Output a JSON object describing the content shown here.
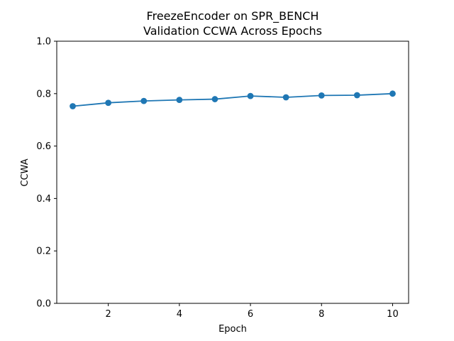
{
  "chart_data": {
    "type": "line",
    "title": "FreezeEncoder on SPR_BENCH",
    "subtitle": "Validation CCWA Across Epochs",
    "xlabel": "Epoch",
    "ylabel": "CCWA",
    "xlim": [
      0.55,
      10.45
    ],
    "ylim": [
      0,
      1.0
    ],
    "xticks": [
      2,
      4,
      6,
      8,
      10
    ],
    "yticks": [
      0.0,
      0.2,
      0.4,
      0.6,
      0.8,
      1.0
    ],
    "ytick_labels": [
      "0.0",
      "0.2",
      "0.4",
      "0.6",
      "0.8",
      "1.0"
    ],
    "grid": false,
    "series_color": "#1f77b4",
    "x": [
      1,
      2,
      3,
      4,
      5,
      6,
      7,
      8,
      9,
      10
    ],
    "y": [
      0.752,
      0.765,
      0.772,
      0.776,
      0.779,
      0.791,
      0.786,
      0.793,
      0.794,
      0.8
    ]
  }
}
